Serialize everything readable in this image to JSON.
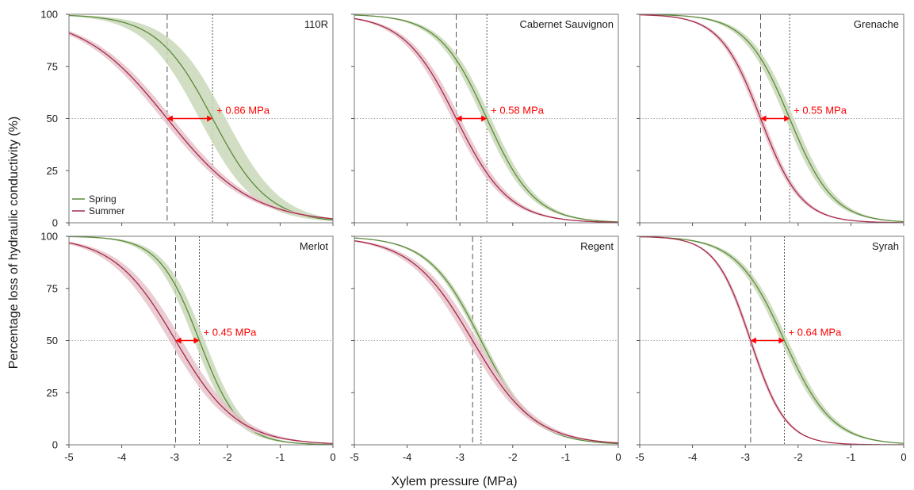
{
  "figure": {
    "ylabel": "Percentage loss of hydraulic conductivity (%)",
    "xlabel": "Xylem pressure (MPa)",
    "legend": {
      "placement": "bottom-left of first panel",
      "entries": [
        {
          "name": "Spring",
          "color": "#5b8a3a"
        },
        {
          "name": "Summer",
          "color": "#a52a48"
        }
      ]
    },
    "colors": {
      "spring": "#5b8a3a",
      "spring_band": "#c9d8b8",
      "summer": "#a52a48",
      "summer_band": "#e6c3cb",
      "annotation": "#ff0000",
      "guide": "#888888"
    }
  },
  "chart_data": [
    {
      "type": "line",
      "title": "110R",
      "xlim": [
        -5,
        0
      ],
      "ylim": [
        0,
        100
      ],
      "xticks": [
        "-5",
        "-4",
        "-3",
        "-2",
        "-1",
        "0"
      ],
      "yticks": [
        "0",
        "25",
        "50",
        "75",
        "100"
      ],
      "series": [
        {
          "name": "Spring",
          "p50": -2.28,
          "slope": 1.9,
          "band": 0.25
        },
        {
          "name": "Summer",
          "p50": -3.14,
          "slope": 1.25,
          "band": 0.1
        }
      ],
      "annotation": "+ 0.86 MPa",
      "reference_y": 50
    },
    {
      "type": "line",
      "title": "Cabernet Sauvignon",
      "xlim": [
        -5,
        0
      ],
      "ylim": [
        0,
        100
      ],
      "xticks": [
        "-5",
        "-4",
        "-3",
        "-2",
        "-1",
        "0"
      ],
      "yticks": [
        "0",
        "25",
        "50",
        "75",
        "100"
      ],
      "series": [
        {
          "name": "Spring",
          "p50": -2.49,
          "slope": 2.2,
          "band": 0.08
        },
        {
          "name": "Summer",
          "p50": -3.07,
          "slope": 2.0,
          "band": 0.08
        }
      ],
      "annotation": "+ 0.58 MPa",
      "reference_y": 50
    },
    {
      "type": "line",
      "title": "Grenache",
      "xlim": [
        -5,
        0
      ],
      "ylim": [
        0,
        100
      ],
      "xticks": [
        "-5",
        "-4",
        "-3",
        "-2",
        "-1",
        "0"
      ],
      "yticks": [
        "0",
        "25",
        "50",
        "75",
        "100"
      ],
      "series": [
        {
          "name": "Spring",
          "p50": -2.16,
          "slope": 2.4,
          "band": 0.08
        },
        {
          "name": "Summer",
          "p50": -2.71,
          "slope": 2.6,
          "band": 0.05
        }
      ],
      "annotation": "+ 0.55 MPa",
      "reference_y": 50
    },
    {
      "type": "line",
      "title": "Merlot",
      "xlim": [
        -5,
        0
      ],
      "ylim": [
        0,
        100
      ],
      "xticks": [
        "-5",
        "-4",
        "-3",
        "-2",
        "-1",
        "0"
      ],
      "yticks": [
        "0",
        "25",
        "50",
        "75",
        "100"
      ],
      "series": [
        {
          "name": "Spring",
          "p50": -2.53,
          "slope": 2.6,
          "band": 0.1
        },
        {
          "name": "Summer",
          "p50": -2.98,
          "slope": 1.7,
          "band": 0.12
        }
      ],
      "annotation": "+ 0.45 MPa",
      "reference_y": 50
    },
    {
      "type": "line",
      "title": "Regent",
      "xlim": [
        -5,
        0
      ],
      "ylim": [
        0,
        100
      ],
      "xticks": [
        "-5",
        "-4",
        "-3",
        "-2",
        "-1",
        "0"
      ],
      "yticks": [
        "0",
        "25",
        "50",
        "75",
        "100"
      ],
      "series": [
        {
          "name": "Spring",
          "p50": -2.6,
          "slope": 2.0,
          "band": 0.05
        },
        {
          "name": "Summer",
          "p50": -2.76,
          "slope": 1.7,
          "band": 0.1
        }
      ],
      "annotation": "",
      "reference_y": 50
    },
    {
      "type": "line",
      "title": "Syrah",
      "xlim": [
        -5,
        0
      ],
      "ylim": [
        0,
        100
      ],
      "xticks": [
        "-5",
        "-4",
        "-3",
        "-2",
        "-1",
        "0"
      ],
      "yticks": [
        "0",
        "25",
        "50",
        "75",
        "100"
      ],
      "series": [
        {
          "name": "Spring",
          "p50": -2.26,
          "slope": 2.2,
          "band": 0.07
        },
        {
          "name": "Summer",
          "p50": -2.9,
          "slope": 3.0,
          "band": 0.03
        }
      ],
      "annotation": "+ 0.64 MPa",
      "reference_y": 50
    }
  ]
}
